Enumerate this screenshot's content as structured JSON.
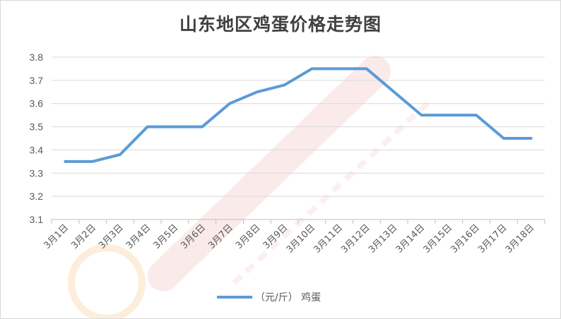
{
  "chart_data": {
    "type": "line",
    "title": "山东地区鸡蛋价格走势图",
    "categories": [
      "3月1日",
      "3月2日",
      "3月3日",
      "3月4日",
      "3月5日",
      "3月6日",
      "3月7日",
      "3月8日",
      "3月9日",
      "3月10日",
      "3月11日",
      "3月12日",
      "3月13日",
      "3月14日",
      "3月15日",
      "3月16日",
      "3月17日",
      "3月18日"
    ],
    "x": [
      0,
      1,
      2,
      3,
      4,
      5,
      6,
      7,
      8,
      9,
      10,
      11,
      13,
      14,
      15,
      16,
      17
    ],
    "series": [
      {
        "name": "（元/斤） 鸡蛋",
        "color": "#5b9bd5",
        "values": [
          3.35,
          3.35,
          3.38,
          3.5,
          3.5,
          3.5,
          3.6,
          3.65,
          3.68,
          3.75,
          3.75,
          3.75,
          3.55,
          3.55,
          3.55,
          3.45,
          3.45
        ]
      }
    ],
    "y_ticks": [
      "3.1",
      "3.2",
      "3.3",
      "3.4",
      "3.5",
      "3.6",
      "3.7",
      "3.8"
    ],
    "ylim": [
      3.1,
      3.8
    ],
    "grid": true,
    "legend": "bottom"
  },
  "colors": {
    "grid": "#d9d9d9",
    "axis": "#bfbfbf",
    "text": "#595959",
    "watermark": "#e8b3b3"
  }
}
